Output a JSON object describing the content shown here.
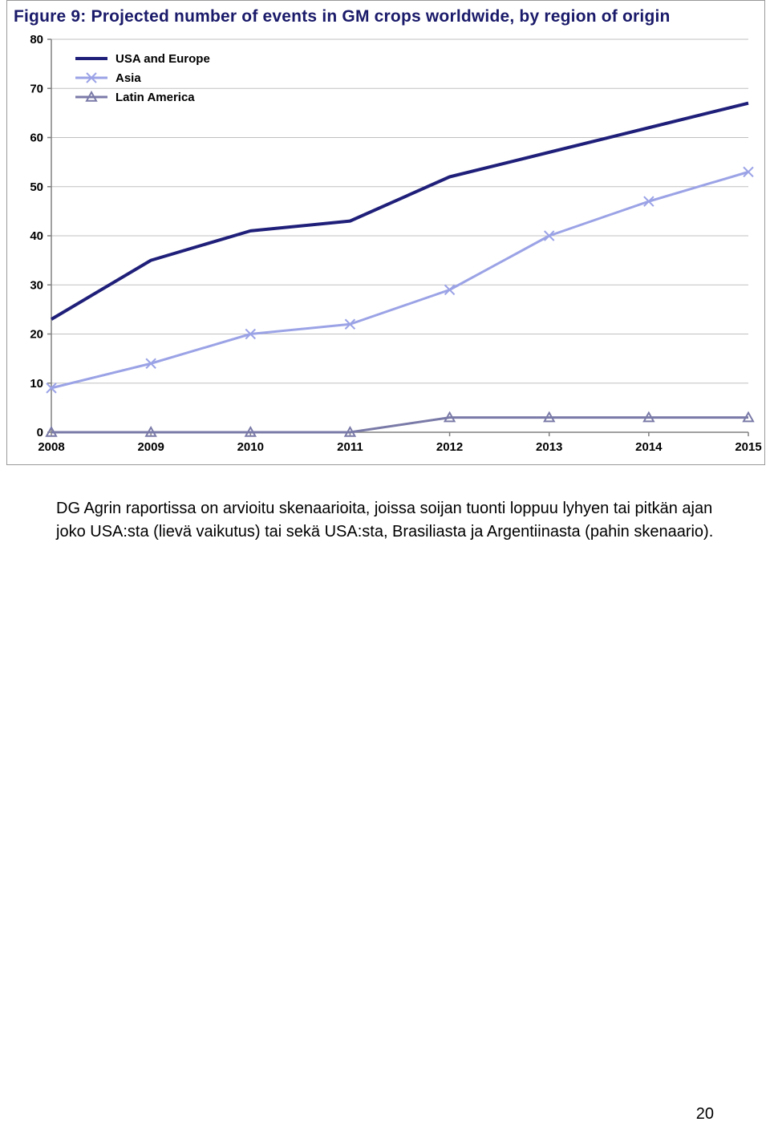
{
  "chart": {
    "type": "line",
    "title": "Figure 9: Projected number of events in GM crops worldwide, by region of origin",
    "title_color": "#1a1a6a",
    "title_fontsize": 21,
    "background_color": "#ffffff",
    "grid_color": "#c0c0c0",
    "axis_color": "#808080",
    "tick_label_color": "#000000",
    "tick_label_fontsize": 15,
    "tick_label_weight": "bold",
    "xaxis": {
      "categories": [
        "2008",
        "2009",
        "2010",
        "2011",
        "2012",
        "2013",
        "2014",
        "2015"
      ]
    },
    "yaxis": {
      "min": 0,
      "max": 80,
      "tick_step": 10
    },
    "legend": {
      "position": "top-left",
      "fontsize": 15,
      "font_weight": "bold",
      "text_color": "#000000",
      "line_length": 40
    },
    "series": [
      {
        "name": "USA and Europe",
        "color": "#1f1f7a",
        "line_width": 4,
        "marker": "none",
        "values": [
          23,
          35,
          41,
          43,
          52,
          57,
          62,
          67
        ]
      },
      {
        "name": "Asia",
        "color": "#9ba3e6",
        "line_width": 3,
        "marker": "x",
        "marker_size": 6,
        "values": [
          9,
          14,
          20,
          22,
          29,
          40,
          47,
          53
        ]
      },
      {
        "name": "Latin America",
        "color": "#7a7aa8",
        "line_width": 3,
        "marker": "triangle",
        "marker_size": 6,
        "values": [
          0,
          0,
          0,
          0,
          3,
          3,
          3,
          3
        ]
      }
    ]
  },
  "body_paragraph": "DG Agrin raportissa on arvioitu skenaarioita, joissa soijan tuonti loppuu lyhyen tai pitkän ajan joko USA:sta (lievä vaikutus) tai sekä USA:sta, Brasiliasta ja Argentiinasta (pahin skenaario).",
  "page_number": "20"
}
